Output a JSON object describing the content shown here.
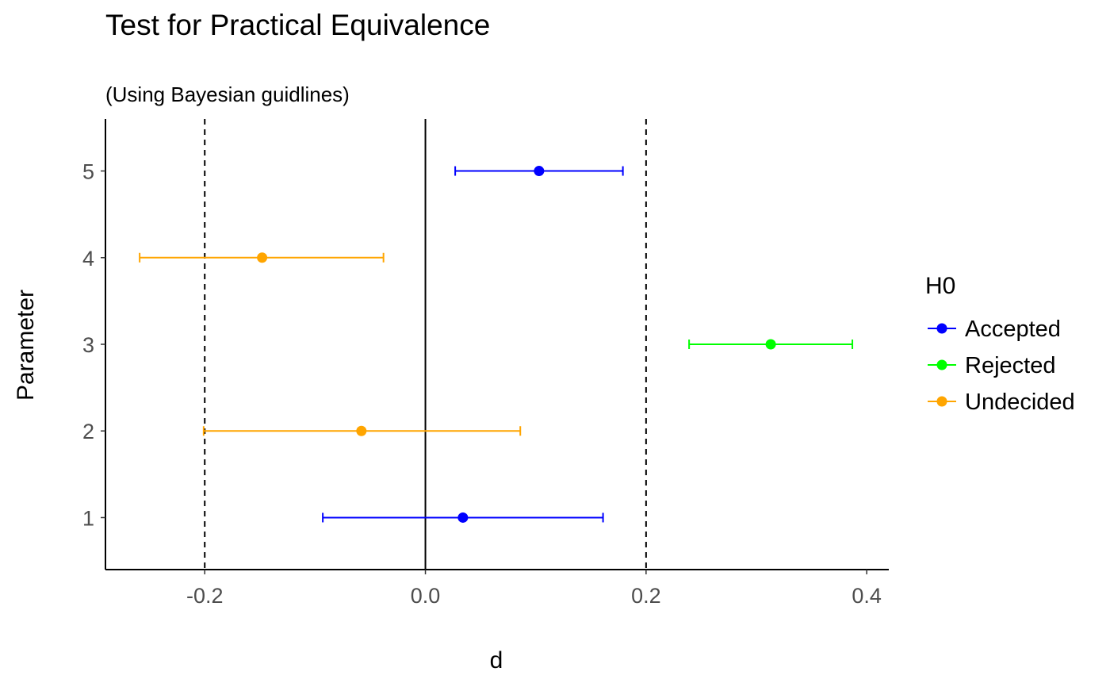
{
  "chart_data": {
    "type": "forest",
    "title": "Test for Practical Equivalence",
    "subtitle": "(Using Bayesian guidlines)",
    "xlabel": "d",
    "ylabel": "Parameter",
    "xlim": [
      -0.29,
      0.42
    ],
    "ylim": [
      0.4,
      5.6
    ],
    "x_ticks": [
      -0.2,
      0.0,
      0.2,
      0.4
    ],
    "x_tick_labels": [
      "-0.2",
      "0.0",
      "0.2",
      "0.4"
    ],
    "y_ticks": [
      1,
      2,
      3,
      4,
      5
    ],
    "y_tick_labels": [
      "1",
      "2",
      "3",
      "4",
      "5"
    ],
    "reference_lines": [
      {
        "x": -0.2,
        "style": "dashed"
      },
      {
        "x": 0.0,
        "style": "solid"
      },
      {
        "x": 0.2,
        "style": "dashed"
      }
    ],
    "legend": {
      "title": "H0",
      "position": "right",
      "entries": [
        {
          "label": "Accepted",
          "color": "#0000ff"
        },
        {
          "label": "Rejected",
          "color": "#00ff00"
        },
        {
          "label": "Undecided",
          "color": "#ffa500"
        }
      ]
    },
    "points": [
      {
        "parameter": 1,
        "estimate": 0.034,
        "ci_low": -0.093,
        "ci_high": 0.161,
        "h0": "Accepted"
      },
      {
        "parameter": 2,
        "estimate": -0.058,
        "ci_low": -0.201,
        "ci_high": 0.086,
        "h0": "Undecided"
      },
      {
        "parameter": 3,
        "estimate": 0.313,
        "ci_low": 0.239,
        "ci_high": 0.387,
        "h0": "Rejected"
      },
      {
        "parameter": 4,
        "estimate": -0.148,
        "ci_low": -0.259,
        "ci_high": -0.038,
        "h0": "Undecided"
      },
      {
        "parameter": 5,
        "estimate": 0.103,
        "ci_low": 0.027,
        "ci_high": 0.179,
        "h0": "Accepted"
      }
    ]
  }
}
